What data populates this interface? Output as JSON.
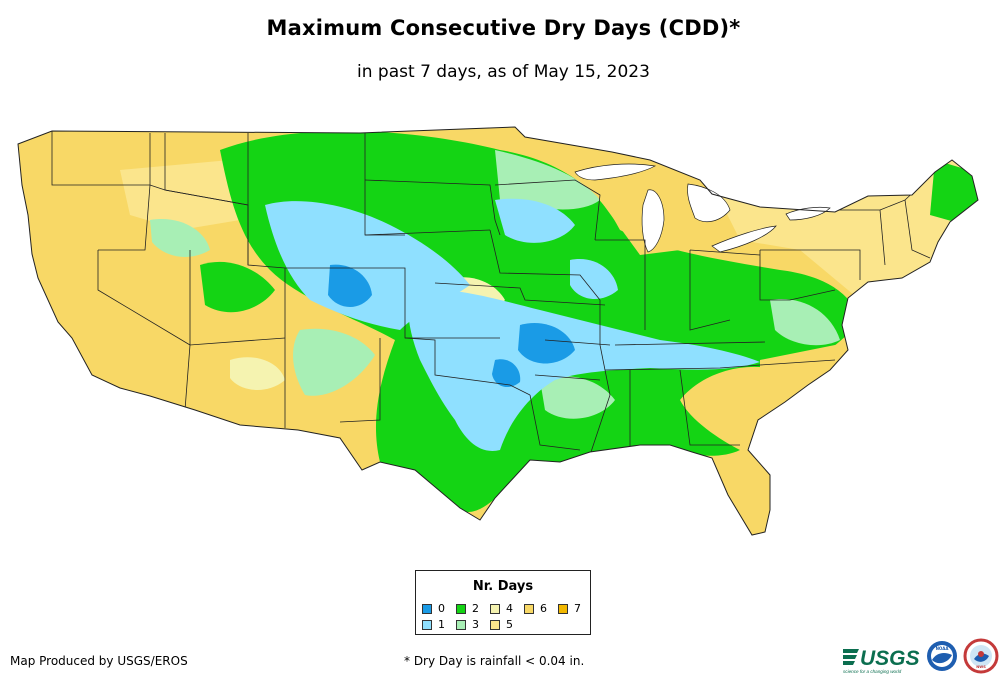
{
  "title": "Maximum Consecutive Dry Days (CDD)*",
  "subtitle": "in past 7 days, as of May 15, 2023",
  "legend": {
    "title": "Nr. Days",
    "items": [
      {
        "label": "0",
        "color": "#1a9be6"
      },
      {
        "label": "1",
        "color": "#8fe0ff"
      },
      {
        "label": "2",
        "color": "#14d414"
      },
      {
        "label": "3",
        "color": "#a8efb5"
      },
      {
        "label": "4",
        "color": "#f5f3b0"
      },
      {
        "label": "5",
        "color": "#fbe58c"
      },
      {
        "label": "6",
        "color": "#f8d866"
      },
      {
        "label": "7",
        "color": "#f2b800"
      }
    ]
  },
  "footer": {
    "producer": "Map Produced by USGS/EROS",
    "footnote": "* Dry Day is rainfall < 0.04 in."
  },
  "logos": {
    "usgs": "USGS",
    "usgs_tagline": "science for a changing world",
    "noaa": "NOAA",
    "nws": "NWS"
  }
}
